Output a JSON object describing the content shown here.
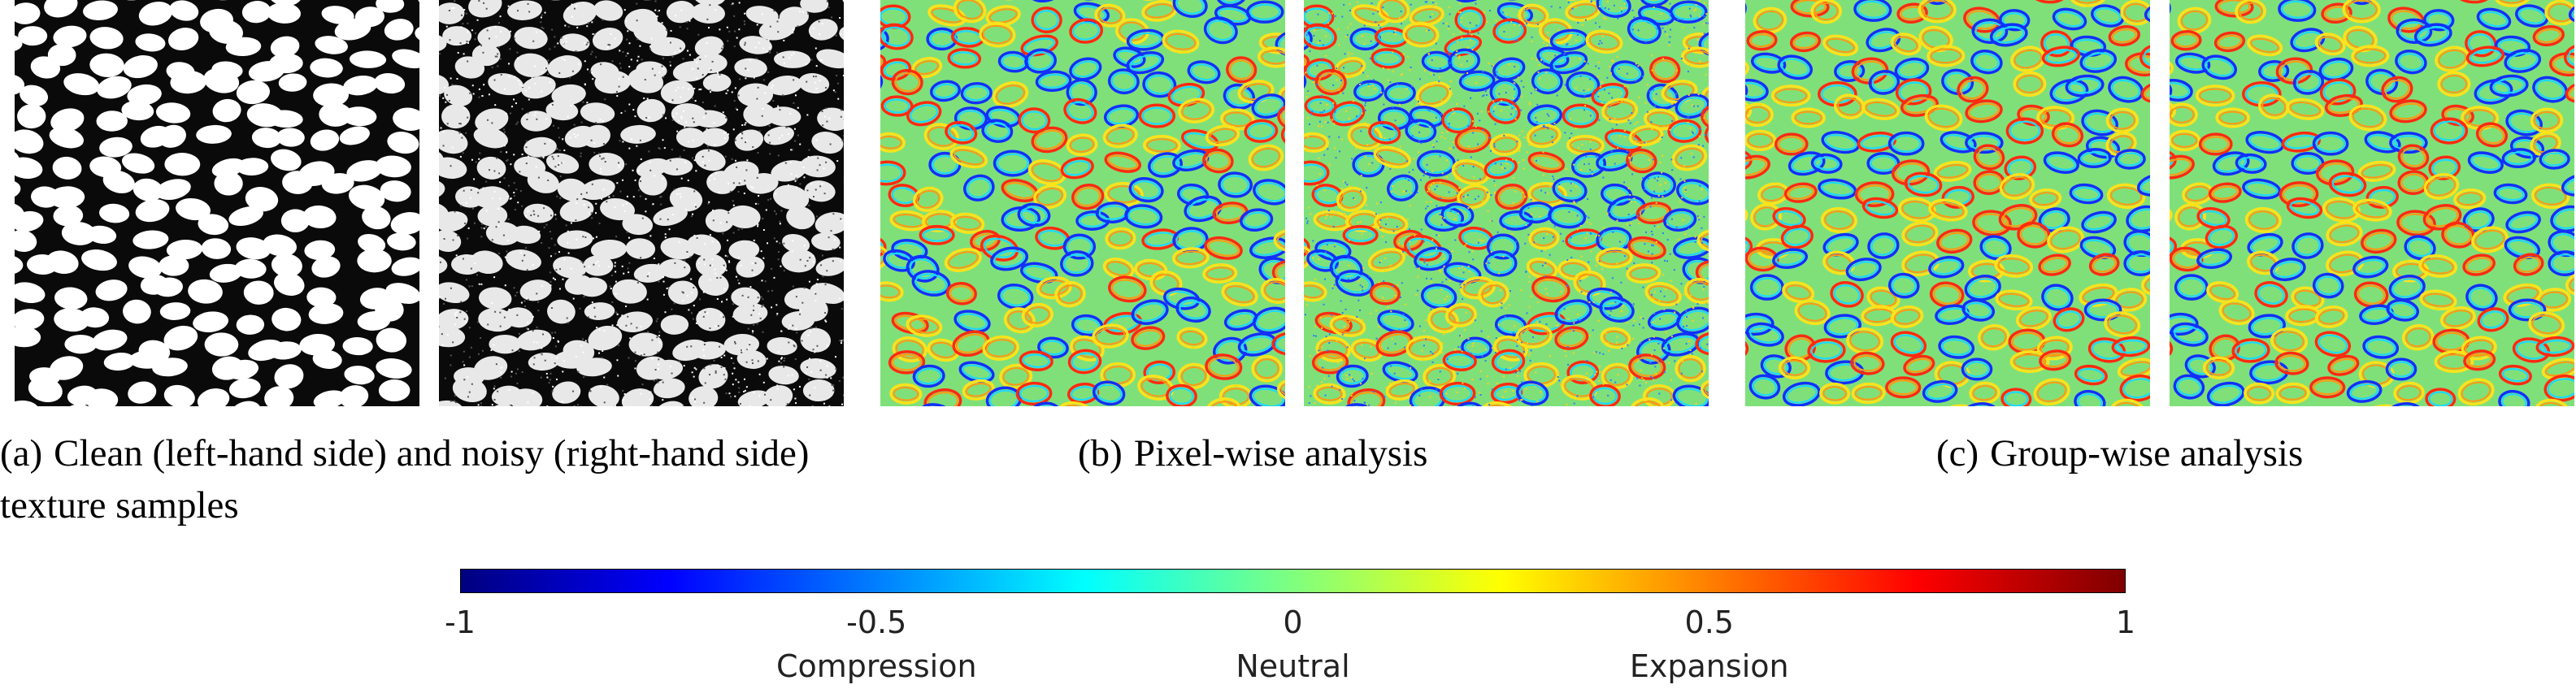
{
  "figure": {
    "panels": [
      {
        "id": "clean",
        "style": "binary-clean",
        "seed": 11
      },
      {
        "id": "noisy",
        "style": "binary-noisy",
        "seed": 11
      },
      {
        "id": "pixel-a",
        "style": "map-pixel",
        "seed": 23
      },
      {
        "id": "pixel-b",
        "style": "map-pixel-noisy",
        "seed": 23
      },
      {
        "id": "group-a",
        "style": "map-group",
        "seed": 37
      },
      {
        "id": "group-b",
        "style": "map-group-fine",
        "seed": 37
      }
    ],
    "captions": {
      "a": {
        "tag": "(a)",
        "text": "Clean (left-hand side) and noisy (right-hand side) texture samples"
      },
      "b": {
        "tag": "(b)",
        "text": "Pixel-wise analysis"
      },
      "c": {
        "tag": "(c)",
        "text": "Group-wise analysis"
      }
    },
    "colorbar": {
      "min": -1,
      "max": 1,
      "ticks": [
        "-1",
        "-0.5",
        "0",
        "0.5",
        "1"
      ],
      "tick_values": [
        -1,
        -0.5,
        0,
        0.5,
        1
      ],
      "region_labels": [
        "Compression",
        "Neutral",
        "Expansion"
      ],
      "region_values": [
        -0.5,
        0,
        0.5
      ],
      "colormap": "jet",
      "stops": [
        "#00007f",
        "#0000ff",
        "#007fff",
        "#00ffff",
        "#7fff7f",
        "#ffff00",
        "#ff7f00",
        "#ff0000",
        "#7f0000"
      ]
    }
  }
}
